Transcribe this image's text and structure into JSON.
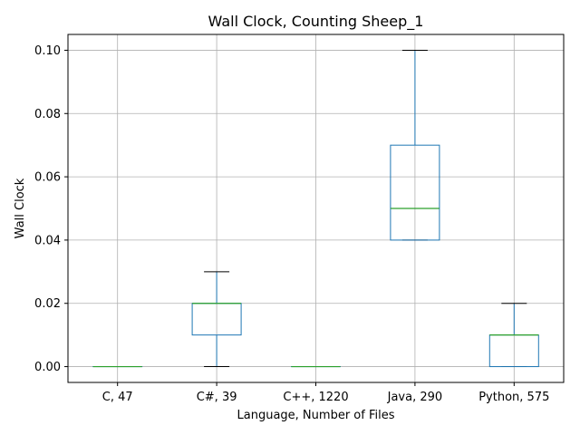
{
  "chart_data": {
    "type": "box",
    "title": "Wall Clock, Counting Sheep_1",
    "xlabel": "Language, Number of Files",
    "ylabel": "Wall Clock",
    "ylim": [
      -0.005,
      0.105
    ],
    "yticks": [
      0.0,
      0.02,
      0.04,
      0.06,
      0.08,
      0.1
    ],
    "ytick_labels": [
      "0.00",
      "0.02",
      "0.04",
      "0.06",
      "0.08",
      "0.10"
    ],
    "grid": true,
    "categories": [
      "C, 47",
      "C#, 39",
      "C++, 1220",
      "Java, 290",
      "Python, 575"
    ],
    "boxes": [
      {
        "whisker_low": 0.0,
        "q1": 0.0,
        "median": 0.0,
        "q3": 0.0,
        "whisker_high": 0.0
      },
      {
        "whisker_low": 0.0,
        "q1": 0.01,
        "median": 0.02,
        "q3": 0.02,
        "whisker_high": 0.03
      },
      {
        "whisker_low": 0.0,
        "q1": 0.0,
        "median": 0.0,
        "q3": 0.0,
        "whisker_high": 0.0
      },
      {
        "whisker_low": 0.04,
        "q1": 0.04,
        "median": 0.05,
        "q3": 0.07,
        "whisker_high": 0.1
      },
      {
        "whisker_low": 0.0,
        "q1": 0.0,
        "median": 0.01,
        "q3": 0.01,
        "whisker_high": 0.02
      }
    ],
    "colors": {
      "box": "#1f77b4",
      "median": "#2ca02c",
      "cap": "#000000",
      "grid": "#b0b0b0",
      "axis": "#000000"
    }
  }
}
